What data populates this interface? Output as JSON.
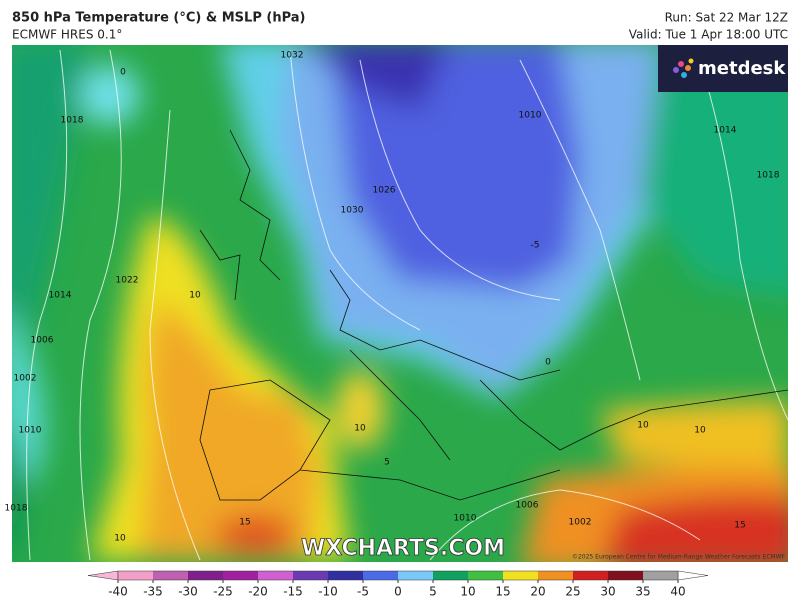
{
  "header": {
    "title": "850 hPa Temperature (°C) & MSLP (hPa)",
    "subtitle": "ECMWF HRES 0.1°",
    "run": "Run: Sat 22 Mar 12Z",
    "valid": "Valid: Tue 1 Apr 18:00 UTC"
  },
  "logo": "metdesk",
  "watermark": "WXCHARTS.COM",
  "copyright": "©2025 European Centre for Medium-Range Weather Forecasts ECMWF",
  "contour_labels": [
    0,
    1018,
    10,
    1022,
    1014,
    1006,
    1002,
    1010,
    1018,
    10,
    15,
    10,
    5,
    1026,
    1030,
    -5,
    0,
    1010,
    1014,
    1018,
    10,
    10,
    1006,
    1002,
    1010,
    15,
    1032
  ],
  "colorbar": {
    "ticks": [
      -40,
      -35,
      -30,
      -25,
      -20,
      -15,
      -10,
      -5,
      0,
      5,
      10,
      15,
      20,
      25,
      30,
      35,
      40
    ],
    "colors": [
      "#f2a0c8",
      "#c060b0",
      "#80208a",
      "#a020a0",
      "#d060d0",
      "#6a3ab0",
      "#3030a0",
      "#4a6ae8",
      "#7ac8f8",
      "#10a060",
      "#40c040",
      "#f0e020",
      "#f09020",
      "#d02020",
      "#801020",
      "#a0a0a0"
    ],
    "under": "#f7b8d8",
    "over": "#ffffff"
  }
}
